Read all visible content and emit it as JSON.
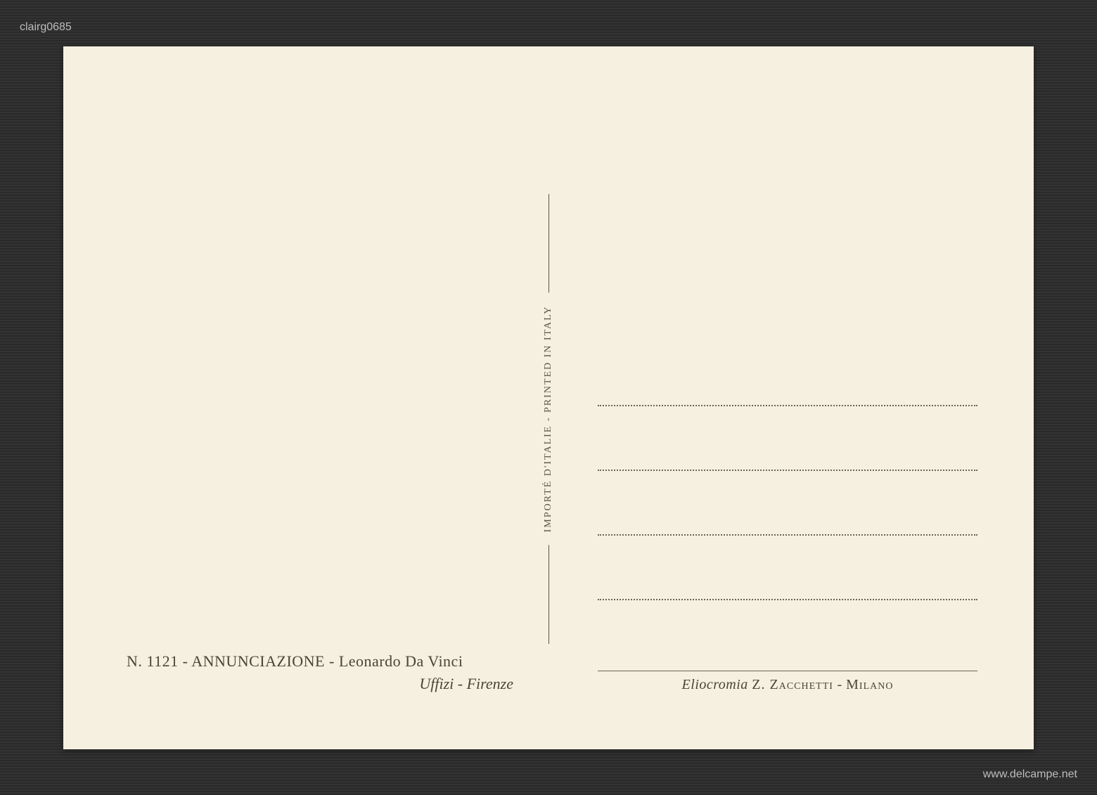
{
  "postcard": {
    "background_color": "#f5f0e0",
    "text_color": "#4a4535",
    "line_color": "#5a5545",
    "dotted_color": "#6a6555",
    "divider": {
      "vertical_text": "IMPORTÉ D'ITALIE - PRINTED IN ITALY",
      "font_size": 14,
      "letter_spacing": 2
    },
    "address_lines_count": 4,
    "left_caption": {
      "line1_prefix": "N. 1121 - ",
      "line1_title": "ANNUNCIAZIONE",
      "line1_separator": " - ",
      "line1_artist": "Leonardo Da Vinci",
      "line2": "Uffizi - Firenze",
      "font_size": 22
    },
    "right_caption": {
      "publisher_prefix": "Eliocromia ",
      "publisher_name": "Z. Zacchetti",
      "publisher_suffix": " - ",
      "publisher_city": "Milano",
      "font_size": 20
    }
  },
  "page_background": {
    "color": "#2a2a2a",
    "stripe_color": "#333333"
  },
  "watermarks": {
    "top_left": "clairg0685",
    "bottom_right": "www.delcampe.net",
    "color": "rgba(255,255,255,0.7)",
    "font_size": 16
  }
}
